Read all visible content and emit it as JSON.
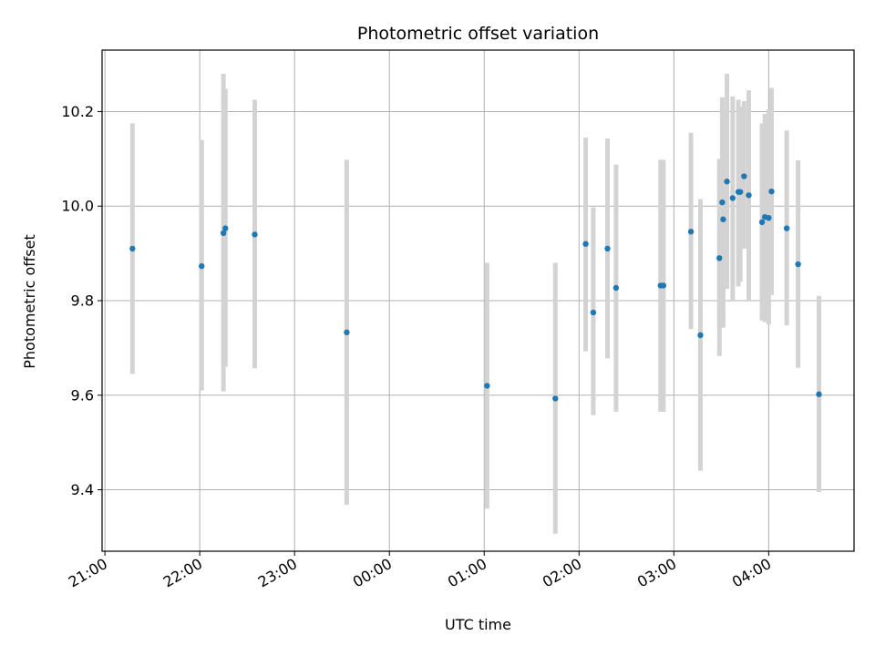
{
  "chart_data": {
    "type": "scatter",
    "title": "Photometric offset variation",
    "xlabel": "UTC time",
    "ylabel": "Photometric offset",
    "x_unit": "UTC time (hours, wrapping past midnight)",
    "xlim": [
      20.97,
      28.9
    ],
    "ylim": [
      9.27,
      10.33
    ],
    "x_ticks": [
      {
        "value": 21,
        "label": "21:00"
      },
      {
        "value": 22,
        "label": "22:00"
      },
      {
        "value": 23,
        "label": "23:00"
      },
      {
        "value": 24,
        "label": "00:00"
      },
      {
        "value": 25,
        "label": "01:00"
      },
      {
        "value": 26,
        "label": "02:00"
      },
      {
        "value": 27,
        "label": "03:00"
      },
      {
        "value": 28,
        "label": "04:00"
      }
    ],
    "y_ticks": [
      {
        "value": 9.4,
        "label": "9.4"
      },
      {
        "value": 9.6,
        "label": "9.6"
      },
      {
        "value": 9.8,
        "label": "9.8"
      },
      {
        "value": 10.0,
        "label": "10.0"
      },
      {
        "value": 10.2,
        "label": "10.2"
      }
    ],
    "grid": true,
    "colors": {
      "point": "#1f77b4",
      "errorbar": "#d3d3d3",
      "grid": "#b0b0b0"
    },
    "points": [
      {
        "x": 21.29,
        "y": 9.91,
        "ylo": 9.645,
        "yhi": 10.175
      },
      {
        "x": 22.02,
        "y": 9.873,
        "ylo": 9.61,
        "yhi": 10.14
      },
      {
        "x": 22.25,
        "y": 9.943,
        "ylo": 9.608,
        "yhi": 10.28
      },
      {
        "x": 22.27,
        "y": 9.953,
        "ylo": 9.66,
        "yhi": 10.248
      },
      {
        "x": 22.58,
        "y": 9.94,
        "ylo": 9.657,
        "yhi": 10.225
      },
      {
        "x": 23.55,
        "y": 9.733,
        "ylo": 9.368,
        "yhi": 10.098
      },
      {
        "x": 25.03,
        "y": 9.62,
        "ylo": 9.36,
        "yhi": 9.88
      },
      {
        "x": 25.75,
        "y": 9.593,
        "ylo": 9.307,
        "yhi": 9.88
      },
      {
        "x": 26.07,
        "y": 9.92,
        "ylo": 9.693,
        "yhi": 10.145
      },
      {
        "x": 26.15,
        "y": 9.775,
        "ylo": 9.558,
        "yhi": 9.997
      },
      {
        "x": 26.3,
        "y": 9.91,
        "ylo": 9.678,
        "yhi": 10.143
      },
      {
        "x": 26.39,
        "y": 9.827,
        "ylo": 9.565,
        "yhi": 10.088
      },
      {
        "x": 26.86,
        "y": 9.832,
        "ylo": 9.565,
        "yhi": 10.098
      },
      {
        "x": 26.89,
        "y": 9.832,
        "ylo": 9.565,
        "yhi": 10.098
      },
      {
        "x": 27.18,
        "y": 9.946,
        "ylo": 9.74,
        "yhi": 10.155
      },
      {
        "x": 27.28,
        "y": 9.727,
        "ylo": 9.44,
        "yhi": 10.015
      },
      {
        "x": 27.48,
        "y": 9.89,
        "ylo": 9.683,
        "yhi": 10.1
      },
      {
        "x": 27.51,
        "y": 10.008,
        "ylo": 9.79,
        "yhi": 10.23
      },
      {
        "x": 27.52,
        "y": 9.972,
        "ylo": 9.743,
        "yhi": 10.2
      },
      {
        "x": 27.56,
        "y": 10.052,
        "ylo": 9.825,
        "yhi": 10.28
      },
      {
        "x": 27.62,
        "y": 10.017,
        "ylo": 9.8,
        "yhi": 10.232
      },
      {
        "x": 27.68,
        "y": 10.03,
        "ylo": 9.83,
        "yhi": 10.225
      },
      {
        "x": 27.7,
        "y": 10.03,
        "ylo": 9.84,
        "yhi": 10.21
      },
      {
        "x": 27.74,
        "y": 10.063,
        "ylo": 9.91,
        "yhi": 10.222
      },
      {
        "x": 27.79,
        "y": 10.023,
        "ylo": 9.8,
        "yhi": 10.245
      },
      {
        "x": 27.93,
        "y": 9.966,
        "ylo": 9.758,
        "yhi": 10.175
      },
      {
        "x": 27.96,
        "y": 9.977,
        "ylo": 9.755,
        "yhi": 10.195
      },
      {
        "x": 28.0,
        "y": 9.975,
        "ylo": 9.75,
        "yhi": 10.205
      },
      {
        "x": 28.03,
        "y": 10.031,
        "ylo": 9.812,
        "yhi": 10.25
      },
      {
        "x": 28.19,
        "y": 9.953,
        "ylo": 9.748,
        "yhi": 10.16
      },
      {
        "x": 28.31,
        "y": 9.877,
        "ylo": 9.658,
        "yhi": 10.097
      },
      {
        "x": 28.53,
        "y": 9.602,
        "ylo": 9.395,
        "yhi": 9.81
      }
    ]
  }
}
